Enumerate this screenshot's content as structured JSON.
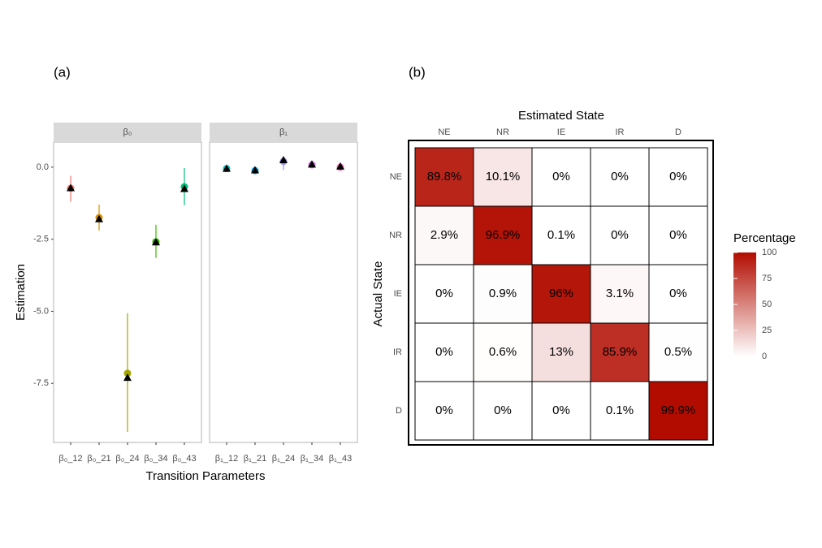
{
  "chart_data": [
    {
      "type": "pointrange",
      "label": "(a)",
      "x_label": "Transition Parameters",
      "y_label": "Estimation",
      "ylim": [
        -9.55,
        0.87
      ],
      "yticks": [
        -7.5,
        {
          "value": -5,
          "label": "-5.0"
        },
        -2.5,
        {
          "value": 0,
          "label": "0.0"
        }
      ],
      "facets": [
        {
          "label": "β₀",
          "categories": [
            "β₀_12",
            "β₀_21",
            "β₀_24",
            "β₀_34",
            "β₀_43"
          ],
          "estimates": [
            -0.73,
            -1.75,
            -7.15,
            -2.59,
            -0.68
          ],
          "lower": [
            -1.2,
            -2.2,
            -9.18,
            -3.15,
            -1.32
          ],
          "upper": [
            -0.3,
            -1.3,
            -5.07,
            -2.0,
            -0.03
          ],
          "true": [
            -0.72,
            -1.8,
            -7.3,
            -2.6,
            -0.75
          ],
          "colors": [
            "#F8766D",
            "#D89000",
            "#A3A500",
            "#39B600",
            "#00BF7D"
          ]
        },
        {
          "label": "β₁",
          "categories": [
            "β₁_12",
            "β₁_21",
            "β₁_24",
            "β₁_34",
            "β₁_43"
          ],
          "estimates": [
            -0.05,
            -0.12,
            0.2,
            0.08,
            0.0
          ],
          "lower": [
            -0.12,
            -0.2,
            -0.1,
            0.0,
            -0.1
          ],
          "upper": [
            0.02,
            -0.04,
            0.35,
            0.16,
            0.1
          ],
          "true": [
            -0.05,
            -0.1,
            0.25,
            0.1,
            0.03
          ],
          "colors": [
            "#00BFC4",
            "#00B0F6",
            "#9590FF",
            "#E76BF3",
            "#FF62BC"
          ]
        }
      ]
    },
    {
      "type": "heatmap",
      "label": "(b)",
      "x_label": "Estimated State",
      "y_label": "Actual State",
      "x_categories": [
        "NE",
        "NR",
        "IE",
        "IR",
        "D"
      ],
      "y_categories": [
        "NE",
        "NR",
        "IE",
        "IR",
        "D"
      ],
      "values": [
        [
          89.8,
          10.1,
          0,
          0,
          0
        ],
        [
          2.9,
          96.9,
          0.1,
          0,
          0
        ],
        [
          0,
          0.9,
          96,
          3.1,
          0
        ],
        [
          0,
          0.6,
          13,
          85.9,
          0.5
        ],
        [
          0,
          0,
          0,
          0.1,
          99.9
        ]
      ],
      "value_labels": [
        [
          "89.8%",
          "10.1%",
          "0%",
          "0%",
          "0%"
        ],
        [
          "2.9%",
          "96.9%",
          "0.1%",
          "0%",
          "0%"
        ],
        [
          "0%",
          "0.9%",
          "96%",
          "3.1%",
          "0%"
        ],
        [
          "0%",
          "0.6%",
          "13%",
          "85.9%",
          "0.5%"
        ],
        [
          "0%",
          "0%",
          "0%",
          "0.1%",
          "99.9%"
        ]
      ],
      "legend_title": "Percentage",
      "colorbar_lim": [
        0,
        100
      ],
      "colorbar_ticks": [
        0,
        25,
        50,
        75,
        100
      ],
      "low_color": "#ffffff",
      "high_color": "#b20c00"
    }
  ]
}
